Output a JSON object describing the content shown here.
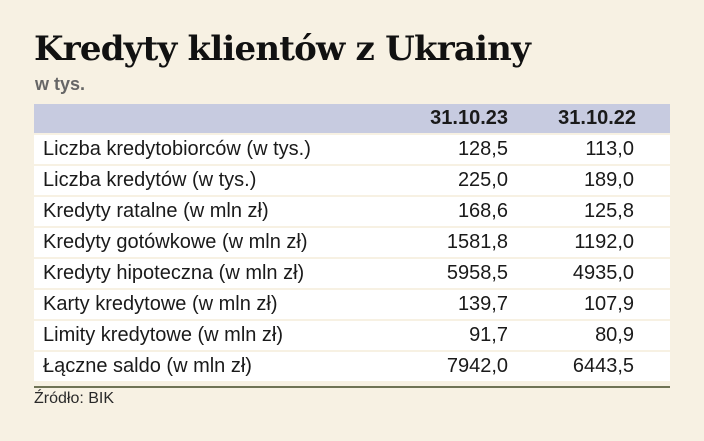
{
  "title": "Kredyty klientów z Ukrainy",
  "subtitle": "w tys.",
  "source": "Źródło: BIK",
  "colors": {
    "background": "#f7f1e3",
    "header_band": "#c7cbe0",
    "row_background": "#ffffff",
    "footer_rule": "#6f7355"
  },
  "chart_data": {
    "type": "table",
    "title": "Kredyty klientów z Ukrainy",
    "subtitle": "w tys.",
    "columns": [
      "",
      "31.10.23",
      "31.10.22"
    ],
    "rows": [
      {
        "label": "Liczba kredytobiorców (w tys.)",
        "values": [
          "128,5",
          "113,0"
        ]
      },
      {
        "label": "Liczba kredytów (w tys.)",
        "values": [
          "225,0",
          "189,0"
        ]
      },
      {
        "label": "Kredyty ratalne (w mln zł)",
        "values": [
          "168,6",
          "125,8"
        ]
      },
      {
        "label": "Kredyty gotówkowe (w mln zł)",
        "values": [
          "1581,8",
          "1192,0"
        ]
      },
      {
        "label": "Kredyty hipoteczna (w mln zł)",
        "values": [
          "5958,5",
          "4935,0"
        ]
      },
      {
        "label": "Karty kredytowe (w mln zł)",
        "values": [
          "139,7",
          "107,9"
        ]
      },
      {
        "label": "Limity kredytowe (w mln zł)",
        "values": [
          "91,7",
          "80,9"
        ]
      },
      {
        "label": "Łączne saldo (w mln zł)",
        "values": [
          "7942,0",
          "6443,5"
        ]
      }
    ],
    "source": "Źródło: BIK"
  }
}
